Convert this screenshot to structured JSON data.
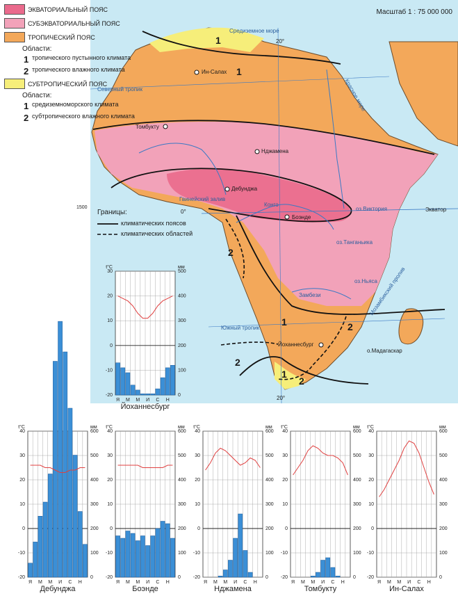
{
  "legend": {
    "equatorial": "ЭКВАТОРИАЛЬНЫЙ ПОЯС",
    "subequatorial": "СУБЭКВАТОРИАЛЬНЫЙ ПОЯС",
    "tropical": "ТРОПИЧЕСКИЙ ПОЯС",
    "tropical_regions_head": "Области:",
    "tropical_region_1_num": "1",
    "tropical_region_1": "тропического пустынного климата",
    "tropical_region_2_num": "2",
    "tropical_region_2": "тропического влажного климата",
    "subtropical": "СУБТРОПИЧЕСКИЙ ПОЯС",
    "subtropical_regions_head": "Области:",
    "subtropical_region_1_num": "1",
    "subtropical_region_1": "средиземноморского климата",
    "subtropical_region_2_num": "2",
    "subtropical_region_2": "субтропического влажного климата",
    "colors": {
      "equatorial": "#ea6a8c",
      "subequatorial": "#f2a2b9",
      "tropical": "#f3a85a",
      "subtropical": "#f6ee7a",
      "water": "#c9e9f4"
    }
  },
  "scale": "Масштаб 1 : 75 000 000",
  "borders": {
    "head": "Границы:",
    "belts": "климатических поясов",
    "regions": "климатических областей"
  },
  "map_labels": {
    "in_salah": "Ин-Салах",
    "tombouctou": "Томбукту",
    "ndjamena": "Нджамена",
    "debundja": "Дебунджа",
    "boende": "Боэнде",
    "johannesburg": "Йоханнесбург",
    "madagascar": "о.Мадагаскар",
    "equator": "Экватор",
    "north_tropic": "Северный тропик",
    "south_tropic": "Южный тропик",
    "gulf_guinea": "Гвинейский залив",
    "mozambique": "Мозамбикский пролив",
    "victoria": "оз.Виктория",
    "tanganyika": "оз.Танганьика",
    "nyasa": "оз.Ньяса",
    "red_sea": "Красное море",
    "med_sea": "Средиземное море",
    "congo": "Конго",
    "zambezi": "Замбези",
    "deg_20n": "20°",
    "deg_0": "0°",
    "deg_20s": "20°"
  },
  "region_numbers": [
    "1",
    "1",
    "2",
    "1",
    "2",
    "2",
    "1",
    "2"
  ],
  "climate_charts": [
    {
      "city": "Дебунджа",
      "temp": [
        26,
        26,
        26,
        25,
        25,
        24,
        23,
        23,
        24,
        24,
        25,
        25
      ],
      "precip": [
        60,
        150,
        260,
        320,
        440,
        920,
        1090,
        960,
        720,
        520,
        280,
        140
      ]
    },
    {
      "city": "Боэнде",
      "temp": [
        26,
        26,
        26,
        26,
        26,
        25,
        25,
        25,
        25,
        25,
        26,
        26
      ],
      "precip": [
        170,
        160,
        190,
        180,
        150,
        170,
        130,
        170,
        200,
        230,
        220,
        160
      ]
    },
    {
      "city": "Нджамена",
      "temp": [
        24,
        27,
        31,
        33,
        32,
        30,
        28,
        26,
        27,
        29,
        28,
        25
      ],
      "precip": [
        0,
        0,
        0,
        5,
        30,
        70,
        160,
        260,
        110,
        20,
        0,
        0
      ]
    },
    {
      "city": "Томбукту",
      "temp": [
        22,
        25,
        28,
        32,
        34,
        33,
        31,
        30,
        30,
        29,
        27,
        22
      ],
      "precip": [
        0,
        0,
        0,
        0,
        5,
        20,
        70,
        80,
        40,
        5,
        0,
        0
      ]
    },
    {
      "city": "Ин-Салах",
      "temp": [
        13,
        16,
        20,
        24,
        28,
        33,
        36,
        35,
        31,
        25,
        19,
        14
      ],
      "precip": [
        0,
        0,
        0,
        0,
        0,
        0,
        0,
        0,
        0,
        0,
        0,
        0
      ]
    },
    {
      "city": "Йоханнесбург",
      "temp": [
        20,
        19,
        18,
        16,
        13,
        11,
        11,
        13,
        16,
        18,
        19,
        20
      ],
      "precip": [
        130,
        110,
        90,
        40,
        20,
        5,
        5,
        5,
        25,
        70,
        110,
        120
      ]
    }
  ],
  "chart_axes": {
    "months": [
      "Я",
      "",
      "М",
      "",
      "М",
      "",
      "И",
      "",
      "С",
      "",
      "Н",
      ""
    ],
    "t_unit": "t°C",
    "p_unit": "мм",
    "t_ticks": [
      "40",
      "30",
      "20",
      "10",
      "0",
      "-10",
      "-20"
    ],
    "p_ticks": [
      "600",
      "500",
      "400",
      "300",
      "200",
      "100",
      "0"
    ],
    "debundja_peak": "1500"
  }
}
